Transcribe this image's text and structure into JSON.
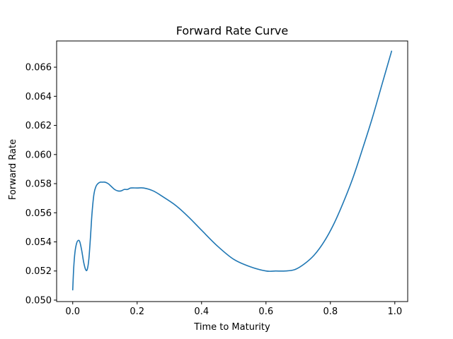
{
  "chart_data": {
    "type": "line",
    "title": "Forward Rate Curve",
    "xlabel": "Time to Maturity",
    "ylabel": "Forward Rate",
    "xlim": [
      -0.05,
      1.04
    ],
    "ylim": [
      0.0499,
      0.0678
    ],
    "xticks": [
      0.0,
      0.2,
      0.4,
      0.6,
      0.8,
      1.0
    ],
    "xtick_labels": [
      "0.0",
      "0.2",
      "0.4",
      "0.6",
      "0.8",
      "1.0"
    ],
    "yticks": [
      0.05,
      0.052,
      0.054,
      0.056,
      0.058,
      0.06,
      0.062,
      0.064,
      0.066
    ],
    "ytick_labels": [
      "0.050",
      "0.052",
      "0.054",
      "0.056",
      "0.058",
      "0.060",
      "0.062",
      "0.064",
      "0.066"
    ],
    "grid": false,
    "series": [
      {
        "color": "#1f77b4",
        "x": [
          0.0,
          0.003,
          0.007,
          0.012,
          0.017,
          0.022,
          0.028,
          0.034,
          0.04,
          0.045,
          0.05,
          0.055,
          0.06,
          0.066,
          0.072,
          0.078,
          0.085,
          0.092,
          0.1,
          0.11,
          0.12,
          0.13,
          0.14,
          0.15,
          0.16,
          0.17,
          0.18,
          0.2,
          0.22,
          0.25,
          0.28,
          0.32,
          0.36,
          0.4,
          0.45,
          0.5,
          0.55,
          0.6,
          0.63,
          0.66,
          0.69,
          0.72,
          0.75,
          0.78,
          0.81,
          0.84,
          0.87,
          0.9,
          0.93,
          0.96,
          0.99
        ],
        "y": [
          0.0507,
          0.0522,
          0.0533,
          0.0539,
          0.0541,
          0.054,
          0.0534,
          0.0526,
          0.0521,
          0.0521,
          0.0528,
          0.0543,
          0.056,
          0.0573,
          0.0578,
          0.058,
          0.0581,
          0.0581,
          0.0581,
          0.058,
          0.0578,
          0.0576,
          0.0575,
          0.0575,
          0.0576,
          0.0576,
          0.0577,
          0.0577,
          0.0577,
          0.0575,
          0.0571,
          0.0565,
          0.0557,
          0.0548,
          0.0537,
          0.0528,
          0.0523,
          0.052,
          0.052,
          0.052,
          0.0521,
          0.0525,
          0.0531,
          0.054,
          0.0552,
          0.0567,
          0.0584,
          0.0604,
          0.0625,
          0.0648,
          0.0671
        ]
      }
    ]
  }
}
